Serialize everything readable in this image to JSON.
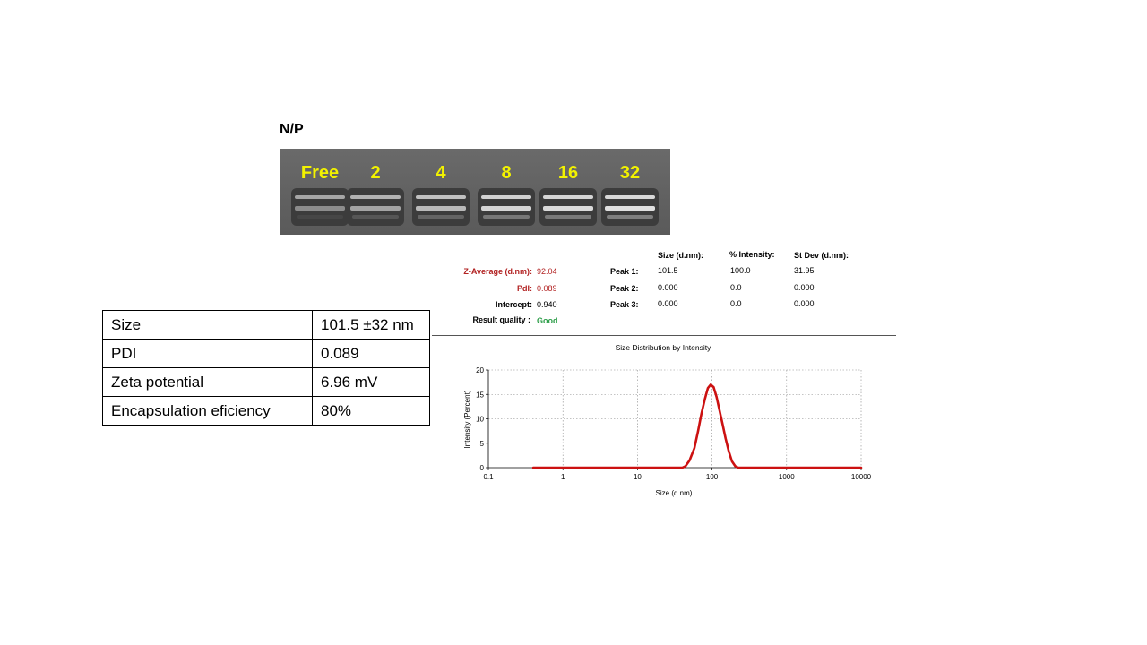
{
  "gel": {
    "heading": "N/P",
    "lanes": [
      "Free",
      "2",
      "4",
      "8",
      "16",
      "32"
    ],
    "label_color": "#f2f200"
  },
  "properties_table": [
    {
      "label": "Size",
      "value": "101.5 ±32 nm"
    },
    {
      "label": "PDI",
      "value": "0.089"
    },
    {
      "label": "Zeta potential",
      "value": "6.96 mV"
    },
    {
      "label": "Encapsulation eficiency",
      "value": "80%"
    }
  ],
  "dls_report": {
    "z_average_label": "Z-Average (d.nm):",
    "z_average_value": "92.04",
    "pdi_label": "PdI:",
    "pdi_value": "0.089",
    "intercept_label": "Intercept:",
    "intercept_value": "0.940",
    "result_quality_label": "Result quality :",
    "result_quality_value": "Good",
    "columns": [
      "Size (d.nm):",
      "% Intensity:",
      "St Dev (d.nm):"
    ],
    "peaks": [
      {
        "label": "Peak 1:",
        "size": "101.5",
        "intensity": "100.0",
        "stdev": "31.95"
      },
      {
        "label": "Peak 2:",
        "size": "0.000",
        "intensity": "0.0",
        "stdev": "0.000"
      },
      {
        "label": "Peak 3:",
        "size": "0.000",
        "intensity": "0.0",
        "stdev": "0.000"
      }
    ]
  },
  "chart_data": {
    "type": "line",
    "title": "Size Distribution by Intensity",
    "xlabel": "Size (d.nm)",
    "ylabel": "Intensity (Percent)",
    "xscale": "log",
    "xlim": [
      0.1,
      10000
    ],
    "ylim": [
      0,
      20
    ],
    "x_ticks": [
      0.1,
      1,
      10,
      100,
      1000,
      10000
    ],
    "x_tick_labels": [
      "0.1",
      "1",
      "10",
      "100",
      "1000",
      "10000"
    ],
    "y_ticks": [
      0,
      5,
      10,
      15,
      20
    ],
    "y_tick_labels": [
      "0",
      "5",
      "10",
      "15",
      "20"
    ],
    "grid": true,
    "line_color": "#cc1111",
    "series": [
      {
        "x": [
          0.4,
          10,
          30,
          40,
          44,
          50,
          58,
          65,
          72,
          80,
          88,
          96,
          105,
          115,
          125,
          138,
          152,
          168,
          185,
          205,
          225,
          250,
          1000,
          10000
        ],
        "y": [
          0,
          0,
          0,
          0,
          0.3,
          1.5,
          4.0,
          7.5,
          11.0,
          14.0,
          16.3,
          17.0,
          16.5,
          14.5,
          12.0,
          9.0,
          6.0,
          3.3,
          1.3,
          0.3,
          0,
          0,
          0,
          0
        ]
      }
    ]
  }
}
